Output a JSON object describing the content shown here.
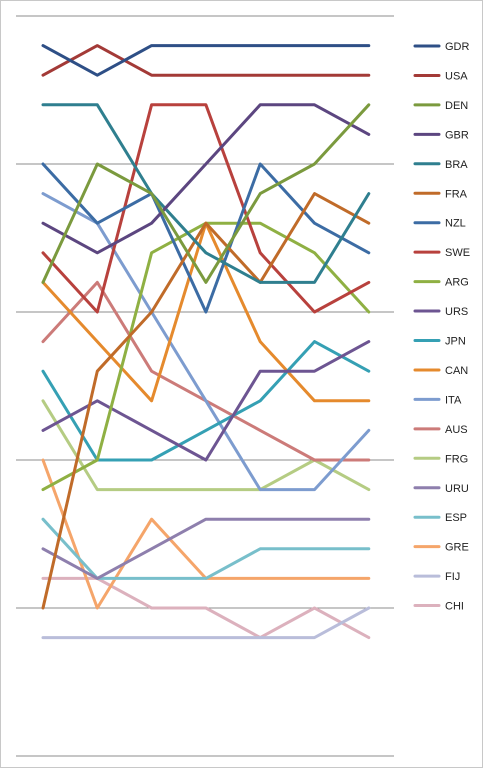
{
  "chart_data": {
    "type": "line",
    "title": "",
    "xlabel": "",
    "ylabel": "",
    "x": [
      1,
      2,
      3,
      4,
      5,
      6,
      7
    ],
    "ylim": [
      0,
      24
    ],
    "y_inverted": true,
    "grid": true,
    "gridlines": [
      0,
      5,
      10,
      15,
      20,
      25
    ],
    "legend_position": "right",
    "series": [
      {
        "name": "GDR",
        "color": "#2e4f86",
        "values": [
          1,
          2,
          1,
          1,
          1,
          1,
          1
        ]
      },
      {
        "name": "USA",
        "color": "#a33a37",
        "values": [
          2,
          1,
          2,
          2,
          2,
          2,
          2
        ]
      },
      {
        "name": "DEN",
        "color": "#7b9a3e",
        "values": [
          9,
          5,
          6,
          9,
          6,
          5,
          3
        ]
      },
      {
        "name": "GBR",
        "color": "#5c4680",
        "values": [
          7,
          8,
          7,
          5,
          3,
          3,
          4
        ]
      },
      {
        "name": "BRA",
        "color": "#2f7f8f",
        "values": [
          3,
          3,
          6,
          8,
          9,
          9,
          6
        ]
      },
      {
        "name": "FRA",
        "color": "#c06b29",
        "values": [
          20,
          12,
          10,
          7,
          9,
          6,
          7
        ]
      },
      {
        "name": "NZL",
        "color": "#3c6ca4",
        "values": [
          5,
          7,
          6,
          10,
          5,
          7,
          8
        ]
      },
      {
        "name": "SWE",
        "color": "#b8413d",
        "values": [
          8,
          10,
          3,
          3,
          8,
          10,
          9
        ]
      },
      {
        "name": "ARG",
        "color": "#8fb043",
        "values": [
          16,
          15,
          8,
          7,
          7,
          8,
          10
        ]
      },
      {
        "name": "URS",
        "color": "#6d5592",
        "values": [
          14,
          13,
          14,
          15,
          12,
          12,
          11
        ]
      },
      {
        "name": "JPN",
        "color": "#35a0b4",
        "values": [
          12,
          15,
          15,
          14,
          13,
          11,
          12
        ]
      },
      {
        "name": "CAN",
        "color": "#e58a2d",
        "values": [
          9,
          11,
          13,
          7,
          11,
          13,
          13
        ]
      },
      {
        "name": "ITA",
        "color": "#7d9ccf",
        "values": [
          6,
          7,
          10,
          13,
          16,
          16,
          14
        ]
      },
      {
        "name": "AUS",
        "color": "#cc7b79",
        "values": [
          11,
          9,
          12,
          13,
          14,
          15,
          15
        ]
      },
      {
        "name": "FRG",
        "color": "#b5cc83",
        "values": [
          13,
          16,
          16,
          16,
          16,
          15,
          16
        ]
      },
      {
        "name": "URU",
        "color": "#8e7fad",
        "values": [
          18,
          19,
          18,
          17,
          17,
          17,
          17
        ]
      },
      {
        "name": "ESP",
        "color": "#78bfcb",
        "values": [
          17,
          19,
          19,
          19,
          18,
          18,
          18
        ]
      },
      {
        "name": "GRE",
        "color": "#f5a56a",
        "values": [
          15,
          20,
          17,
          19,
          19,
          19,
          19
        ]
      },
      {
        "name": "FIJ",
        "color": "#b9bdda",
        "values": [
          21,
          21,
          21,
          21,
          21,
          21,
          20
        ]
      },
      {
        "name": "CHI",
        "color": "#dcb1bd",
        "values": [
          19,
          19,
          20,
          20,
          21,
          20,
          21
        ]
      }
    ]
  }
}
